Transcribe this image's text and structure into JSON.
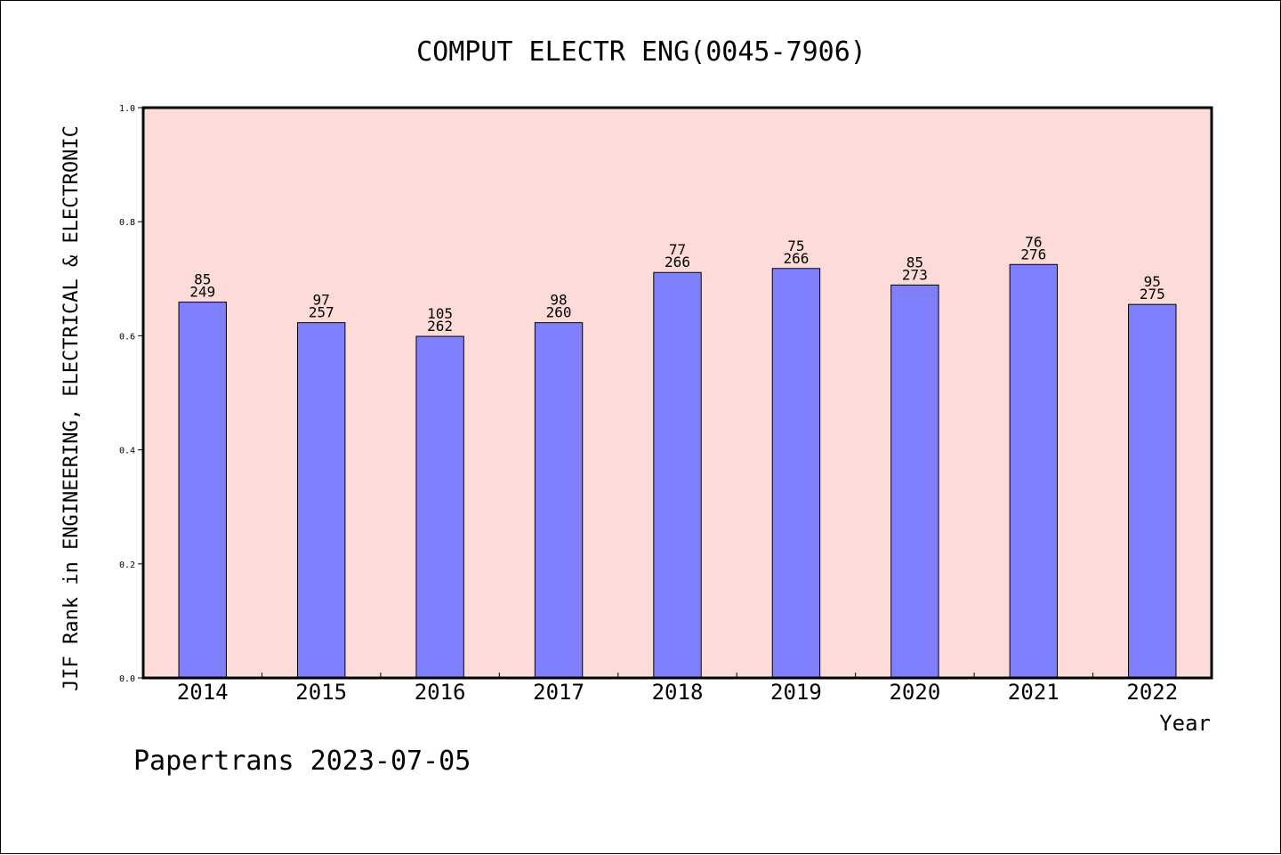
{
  "chart_data": {
    "type": "bar",
    "title": "COMPUT ELECTR ENG(0045-7906)",
    "xlabel": "Year",
    "ylabel": "JIF Rank in ENGINEERING, ELECTRICAL & ELECTRONIC",
    "ylim": [
      0,
      1.0
    ],
    "yticks": [
      "0.0",
      "0.2",
      "0.4",
      "0.6",
      "0.8",
      "1.0"
    ],
    "categories": [
      "2014",
      "2015",
      "2016",
      "2017",
      "2018",
      "2019",
      "2020",
      "2021",
      "2022"
    ],
    "values": [
      0.659,
      0.623,
      0.599,
      0.623,
      0.711,
      0.718,
      0.689,
      0.725,
      0.655
    ],
    "labels_top": [
      "85",
      "97",
      "105",
      "98",
      "77",
      "75",
      "85",
      "76",
      "95"
    ],
    "labels_bottom": [
      "249",
      "257",
      "262",
      "260",
      "266",
      "266",
      "273",
      "276",
      "275"
    ],
    "grid": false,
    "colors": {
      "bar": "#8080ff",
      "plot_bg": "#fddbd8",
      "axis": "#000000"
    }
  },
  "footer": {
    "credit": "Papertrans 2023-07-05"
  }
}
